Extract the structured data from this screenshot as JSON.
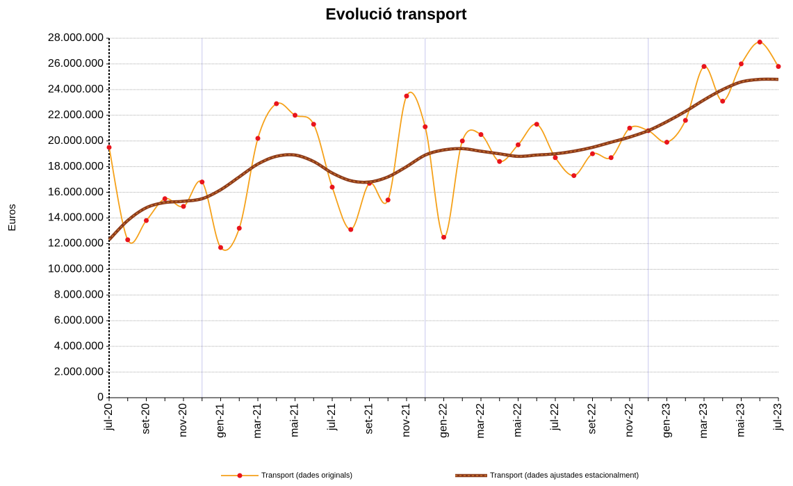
{
  "chart_data": {
    "type": "line",
    "title": "Evolució transport",
    "y_label": "Euros",
    "categories": [
      "jul-20",
      null,
      "set-20",
      null,
      "nov-20",
      null,
      "gen-21",
      null,
      "mar-21",
      null,
      "mai-21",
      null,
      "jul-21",
      null,
      "set-21",
      null,
      "nov-21",
      null,
      "gen-22",
      null,
      "mar-22",
      null,
      "mai-22",
      null,
      "jul-22",
      null,
      "set-22",
      null,
      "nov-22",
      null,
      "gen-23",
      null,
      "mar-23",
      null,
      "mai-23",
      null,
      "jul-23"
    ],
    "series": [
      {
        "name": "Transport (dades originals)",
        "color": "#f5a11a",
        "marker_color": "#e8141c",
        "values": [
          19500000,
          12300000,
          13800000,
          15500000,
          14900000,
          16800000,
          11700000,
          13200000,
          20200000,
          22900000,
          22000000,
          21300000,
          16400000,
          13100000,
          16700000,
          15400000,
          23500000,
          21100000,
          12500000,
          20000000,
          20500000,
          18400000,
          19700000,
          21300000,
          18700000,
          17300000,
          19000000,
          18700000,
          21000000,
          20800000,
          19900000,
          21600000,
          25800000,
          23100000,
          26000000,
          27700000,
          25800000
        ]
      },
      {
        "name": "Transport (dades ajustades estacionalment)",
        "color": "#8b3a1a",
        "values": [
          12300000,
          13800000,
          14800000,
          15200000,
          15300000,
          15500000,
          16200000,
          17200000,
          18200000,
          18800000,
          18900000,
          18400000,
          17500000,
          16900000,
          16800000,
          17200000,
          18000000,
          18900000,
          19300000,
          19400000,
          19200000,
          19000000,
          18800000,
          18900000,
          19000000,
          19200000,
          19500000,
          19900000,
          20300000,
          20800000,
          21500000,
          22300000,
          23200000,
          24000000,
          24600000,
          24800000,
          24800000
        ]
      }
    ],
    "ylim": [
      0,
      28000000
    ],
    "yticks": [
      0,
      {
        "value": 2000000,
        "label": "2.000.000"
      },
      {
        "value": 4000000,
        "label": "4.000.000"
      },
      {
        "value": 6000000,
        "label": "6.000.000"
      },
      {
        "value": 8000000,
        "label": "8.000.000"
      },
      {
        "value": 10000000,
        "label": "10.000.000"
      },
      {
        "value": 12000000,
        "label": "12.000.000"
      },
      {
        "value": 14000000,
        "label": "14.000.000"
      },
      {
        "value": 16000000,
        "label": "16.000.000"
      },
      {
        "value": 18000000,
        "label": "18.000.000"
      },
      {
        "value": 20000000,
        "label": "20.000.000"
      },
      {
        "value": 22000000,
        "label": "22.000.000"
      },
      {
        "value": 24000000,
        "label": "24.000.000"
      },
      {
        "value": 26000000,
        "label": "26.000.000"
      },
      {
        "value": 28000000,
        "label": "28.000.000"
      }
    ],
    "grid": true,
    "legend": "bottom"
  }
}
